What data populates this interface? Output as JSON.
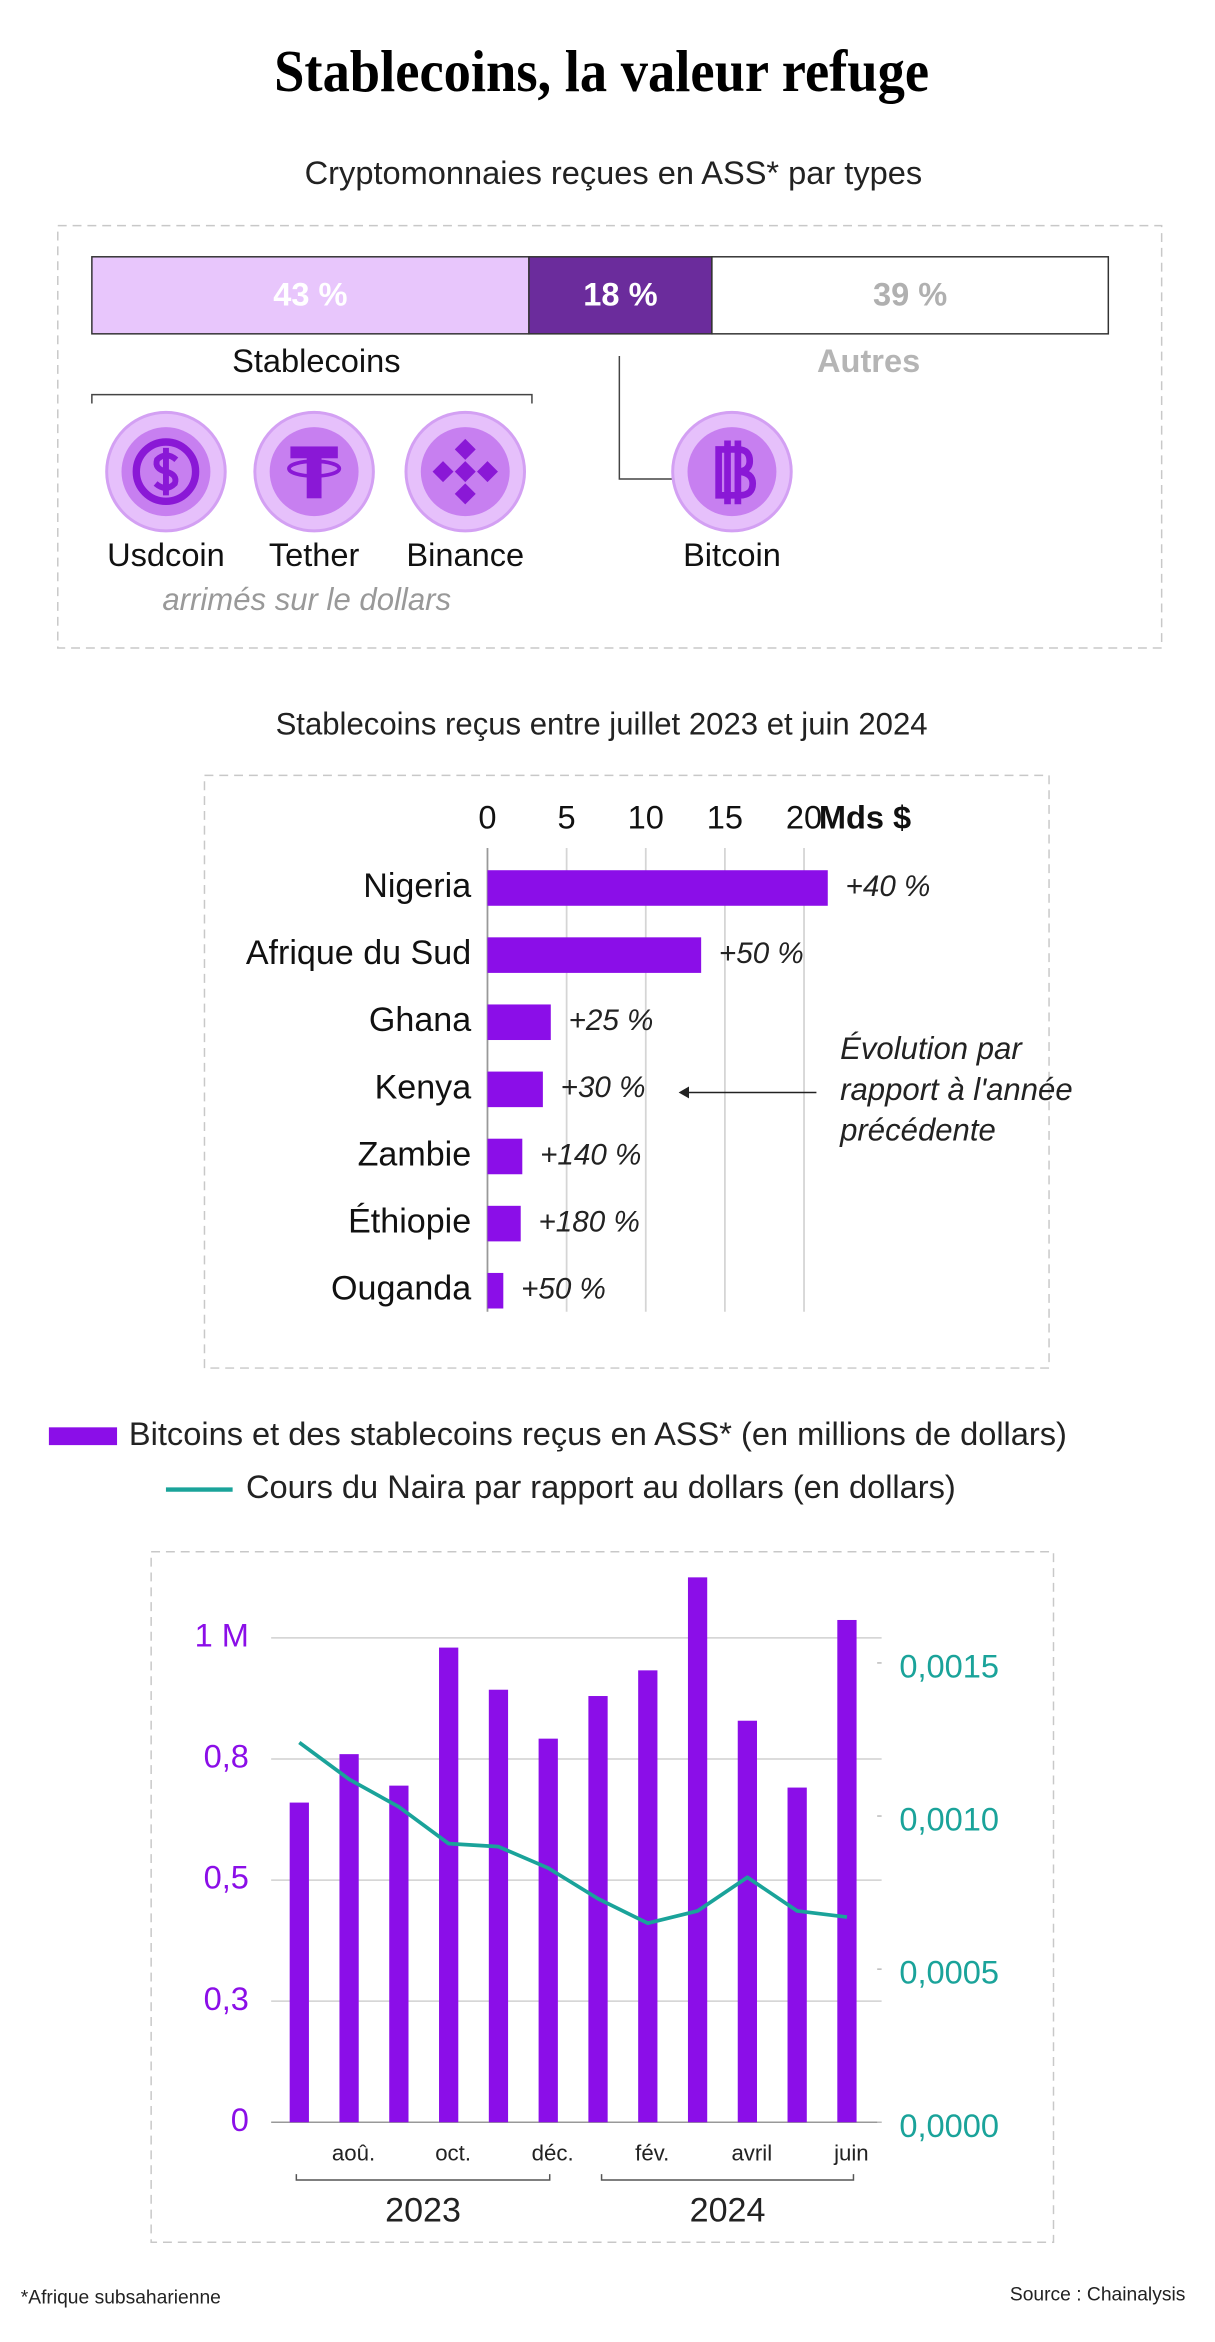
{
  "title": "Stablecoins, la valeur refuge",
  "footnote": "*Afrique subsaharienne",
  "source": "Source : Chainalysis",
  "chart_data": [
    {
      "type": "stacked-bar",
      "title": "Cryptomonnaies reçues en ASS* par types",
      "categories": [
        "Stablecoins",
        "Bitcoin",
        "Autres"
      ],
      "values": [
        43,
        18,
        39
      ],
      "value_labels": [
        "43 %",
        "18 %",
        "39 %"
      ],
      "colors": [
        "#e8c6fc",
        "#6b2c9c",
        "#ffffff"
      ],
      "label_colors": [
        "#ffffff",
        "#ffffff",
        "#b0b0b0"
      ],
      "xlim": [
        0,
        100
      ],
      "stablecoins": [
        "Usdcoin",
        "Tether",
        "Binance"
      ],
      "stablecoins_note": "arrimés sur le dollars"
    },
    {
      "type": "hbar",
      "title": "Stablecoins reçus entre juillet 2023 et juin 2024",
      "categories": [
        "Nigeria",
        "Afrique du Sud",
        "Ghana",
        "Kenya",
        "Zambie",
        "Éthiopie",
        "Ouganda"
      ],
      "values": [
        21.5,
        13.5,
        4.0,
        3.5,
        2.2,
        2.1,
        1.0
      ],
      "annotations": [
        "+40 %",
        "+50 %",
        "+25 %",
        "+30 %",
        "+140 %",
        "+180 %",
        "+50 %"
      ],
      "color": "#8b0ee8",
      "xlim": [
        0,
        22
      ],
      "xticks": [
        0,
        5,
        10,
        15,
        20
      ],
      "unit": "Mds $",
      "grid": true,
      "note_lines": [
        "Évolution par",
        "rapport à l'année",
        "précédente"
      ]
    },
    {
      "type": "bar-line",
      "categories": [
        null,
        "aoû.",
        null,
        "oct.",
        null,
        "déc.",
        null,
        "fév.",
        null,
        "avril",
        null,
        "juin"
      ],
      "year_labels": [
        "2023",
        "2024"
      ],
      "series": [
        {
          "name": "Bitcoins et des stablecoins reçus en ASS* (en millions de dollars)",
          "color": "#8b0ee8",
          "values": [
            660000,
            760000,
            695000,
            980000,
            893000,
            792000,
            880000,
            933000,
            1125000,
            829000,
            691000,
            1037000
          ]
        },
        {
          "name": "Cours du Naira par rapport au dollars (en dollars)",
          "color": "#1aa39a",
          "axis": "y2",
          "values": [
            0.00124,
            0.00112,
            0.00103,
            0.00091,
            0.0009,
            0.00083,
            0.00073,
            0.00065,
            0.00069,
            0.0008,
            0.00069,
            0.00067
          ]
        }
      ],
      "ylim": [
        0,
        1138000
      ],
      "yticks": [
        0,
        {
          "value": 250000,
          "label": "0,3"
        },
        {
          "value": 500000,
          "label": "0,5"
        },
        {
          "value": 750000,
          "label": "0,8"
        },
        {
          "value": 1000000,
          "label": "1 M"
        }
      ],
      "y2lim": [
        0,
        0.0018
      ],
      "y2ticks": [
        {
          "value": 0,
          "label": "0,0000"
        },
        {
          "value": 0.0005,
          "label": "0,0005"
        },
        {
          "value": 0.001,
          "label": "0,0010"
        },
        {
          "value": 0.0015,
          "label": "0,0015"
        }
      ],
      "grid": true
    }
  ]
}
